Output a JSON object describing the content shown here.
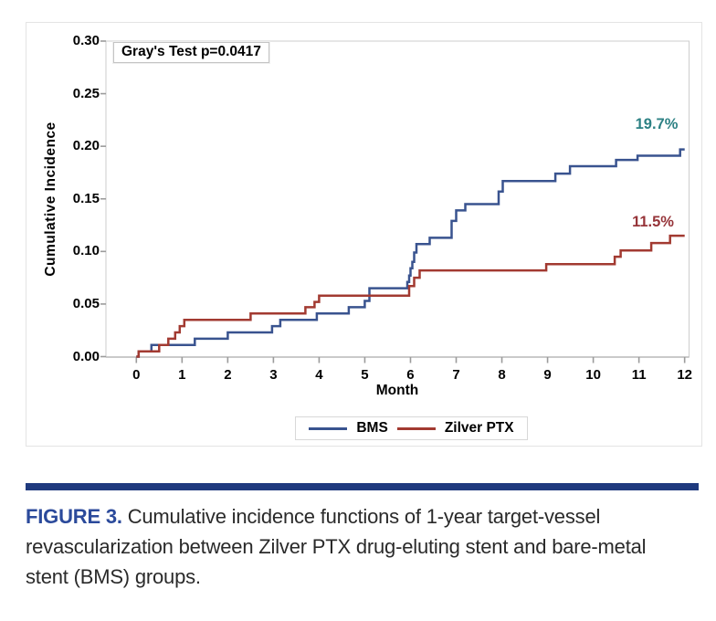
{
  "colors": {
    "frame": "#cdcdcd",
    "axis": "#b8b8b8",
    "tick": "#9b9b9b",
    "caption_bar": "#1f3a7e",
    "figure_label": "#2b4a9b",
    "caption_text": "#2a2a2a"
  },
  "chart_data": {
    "type": "line",
    "step": true,
    "title": "",
    "xlabel": "Month",
    "ylabel": "Cumulative Incidence",
    "xlim": [
      0,
      12
    ],
    "ylim": [
      0.0,
      0.3
    ],
    "x_tick_labels": [
      "0",
      "1",
      "2",
      "3",
      "4",
      "5",
      "6",
      "7",
      "8",
      "9",
      "10",
      "11",
      "12"
    ],
    "y_tick_labels": [
      "0.00",
      "0.05",
      "0.10",
      "0.15",
      "0.20",
      "0.25",
      "0.30"
    ],
    "grid": false,
    "legend_position": "bottom-center",
    "annotation": "Gray's Test p=0.0417",
    "series": [
      {
        "name": "BMS",
        "color": "#39538f",
        "end_label": "19.7%",
        "end_label_color": "#2d8184",
        "steps": [
          [
            0,
            0
          ],
          [
            0.05,
            0.005
          ],
          [
            0.33,
            0.011
          ],
          [
            1.28,
            0.017
          ],
          [
            2,
            0.023
          ],
          [
            2.97,
            0.029
          ],
          [
            3.15,
            0.035
          ],
          [
            3.95,
            0.041
          ],
          [
            4.65,
            0.047
          ],
          [
            5,
            0.053
          ],
          [
            5.1,
            0.065
          ],
          [
            5.93,
            0.071
          ],
          [
            5.97,
            0.077
          ],
          [
            6,
            0.084
          ],
          [
            6.04,
            0.09
          ],
          [
            6.08,
            0.099
          ],
          [
            6.13,
            0.107
          ],
          [
            6.42,
            0.113
          ],
          [
            6.9,
            0.129
          ],
          [
            7,
            0.139
          ],
          [
            7.2,
            0.145
          ],
          [
            7.93,
            0.157
          ],
          [
            8.02,
            0.167
          ],
          [
            9.17,
            0.174
          ],
          [
            9.49,
            0.181
          ],
          [
            10.5,
            0.187
          ],
          [
            10.97,
            0.191
          ],
          [
            11.9,
            0.197
          ],
          [
            12,
            0.197
          ]
        ]
      },
      {
        "name": "Zilver PTX",
        "color": "#a23a31",
        "end_label": "11.5%",
        "end_label_color": "#963439",
        "steps": [
          [
            0,
            0
          ],
          [
            0.05,
            0.005
          ],
          [
            0.5,
            0.011
          ],
          [
            0.7,
            0.017
          ],
          [
            0.85,
            0.023
          ],
          [
            0.95,
            0.029
          ],
          [
            1.05,
            0.035
          ],
          [
            2.5,
            0.041
          ],
          [
            3.7,
            0.047
          ],
          [
            3.9,
            0.052
          ],
          [
            4,
            0.058
          ],
          [
            5.97,
            0.067
          ],
          [
            6.08,
            0.075
          ],
          [
            6.2,
            0.082
          ],
          [
            8.97,
            0.088
          ],
          [
            10.47,
            0.095
          ],
          [
            10.6,
            0.101
          ],
          [
            11.27,
            0.108
          ],
          [
            11.68,
            0.115
          ],
          [
            12,
            0.115
          ]
        ]
      }
    ]
  },
  "caption": {
    "figure_label": "FIGURE 3.",
    "text": "Cumulative incidence functions of 1-year target-vessel revascularization between Zilver PTX drug-eluting stent and bare-metal stent (BMS) groups."
  }
}
